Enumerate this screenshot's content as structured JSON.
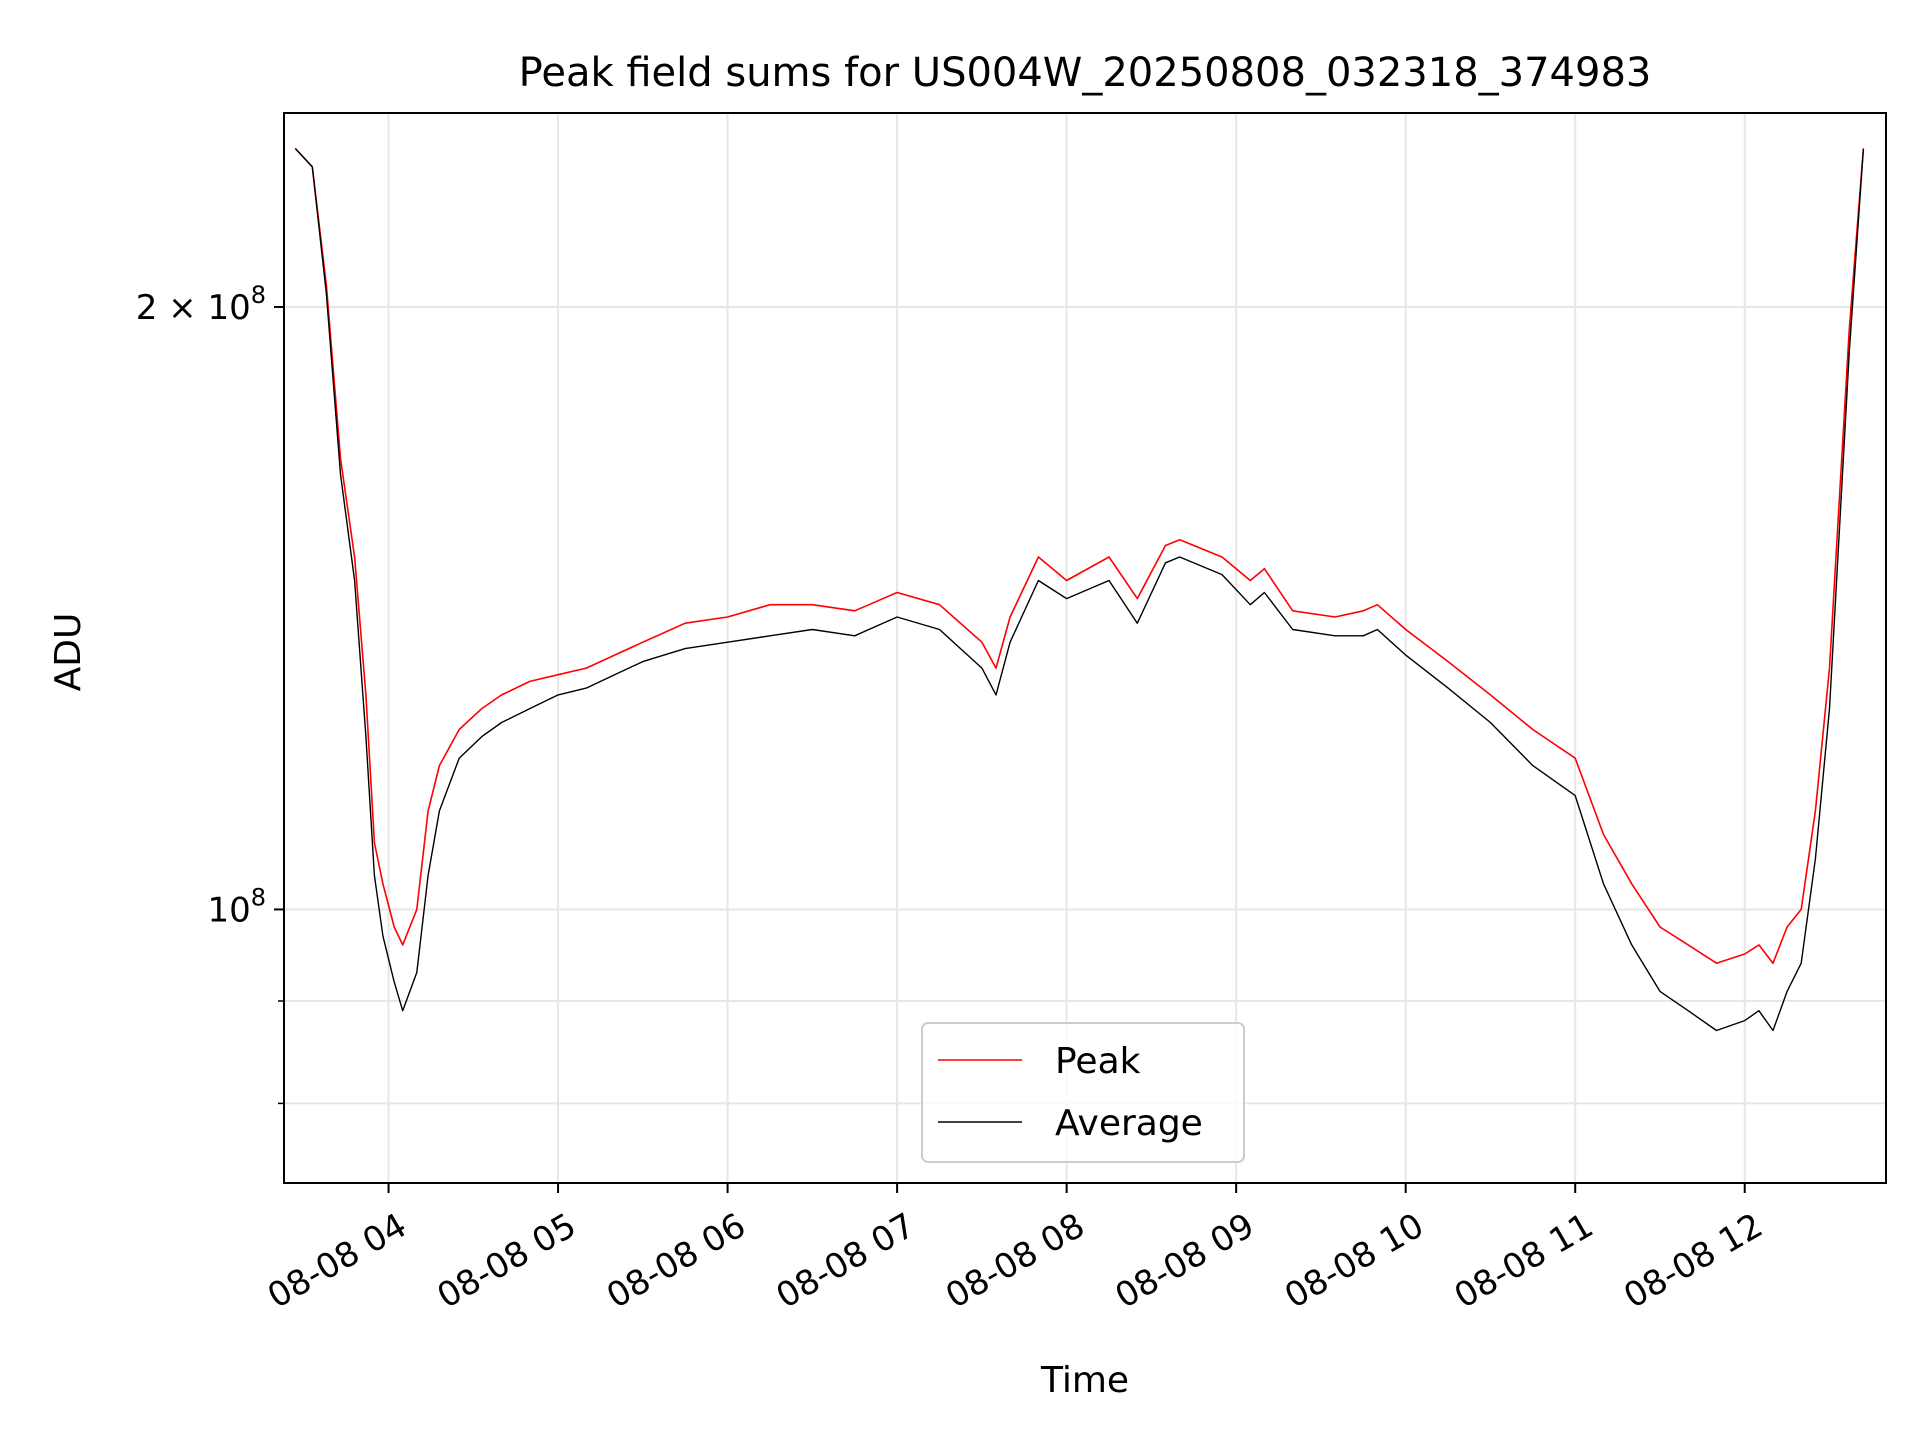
{
  "chart_data": {
    "type": "line",
    "title": "Peak field sums for US004W_20250808_032318_374983",
    "xlabel": "Time",
    "ylabel": "ADU",
    "yscale": "log",
    "xlim": [
      "2025-08-08 03:23",
      "2025-08-08 12:50"
    ],
    "ylim": [
      73000000,
      250000000
    ],
    "grid": true,
    "legend": {
      "placement": "lower center",
      "entries": [
        "Peak",
        "Average"
      ]
    },
    "x_ticks": [
      {
        "value": "2025-08-08 04:00",
        "label": "08-08 04"
      },
      {
        "value": "2025-08-08 05:00",
        "label": "08-08 05"
      },
      {
        "value": "2025-08-08 06:00",
        "label": "08-08 06"
      },
      {
        "value": "2025-08-08 07:00",
        "label": "08-08 07"
      },
      {
        "value": "2025-08-08 08:00",
        "label": "08-08 08"
      },
      {
        "value": "2025-08-08 09:00",
        "label": "08-08 09"
      },
      {
        "value": "2025-08-08 10:00",
        "label": "08-08 10"
      },
      {
        "value": "2025-08-08 11:00",
        "label": "08-08 11"
      },
      {
        "value": "2025-08-08 12:00",
        "label": "08-08 12"
      }
    ],
    "y_ticks_major": [
      {
        "value": 100000000,
        "label": "10",
        "exp": "8",
        "mantissa": ""
      },
      {
        "value": 200000000,
        "label": "10",
        "exp": "8",
        "mantissa": "2 × "
      }
    ],
    "y_ticks_minor": [
      80000000,
      90000000
    ],
    "series": [
      {
        "name": "Peak",
        "color": "#ff0000",
        "x": [
          "03:27",
          "03:33",
          "03:38",
          "03:43",
          "03:48",
          "03:52",
          "03:55",
          "03:58",
          "04:02",
          "04:05",
          "04:10",
          "04:14",
          "04:18",
          "04:25",
          "04:33",
          "04:40",
          "04:50",
          "05:00",
          "05:10",
          "05:20",
          "05:30",
          "05:45",
          "06:00",
          "06:15",
          "06:30",
          "06:45",
          "07:00",
          "07:15",
          "07:30",
          "07:35",
          "07:40",
          "07:50",
          "08:00",
          "08:15",
          "08:25",
          "08:35",
          "08:40",
          "08:55",
          "09:05",
          "09:10",
          "09:20",
          "09:35",
          "09:45",
          "09:50",
          "10:00",
          "10:15",
          "10:30",
          "10:45",
          "11:00",
          "11:10",
          "11:20",
          "11:30",
          "11:40",
          "11:50",
          "12:00",
          "12:05",
          "12:10",
          "12:15",
          "12:20",
          "12:25",
          "12:30",
          "12:37",
          "12:42"
        ],
        "y": [
          240000000,
          235000000,
          205000000,
          168000000,
          150000000,
          128000000,
          108000000,
          103000000,
          98000000,
          96000000,
          100000000,
          112000000,
          118000000,
          123000000,
          126000000,
          128000000,
          130000000,
          131000000,
          132000000,
          134000000,
          136000000,
          139000000,
          140000000,
          142000000,
          142000000,
          141000000,
          144000000,
          142000000,
          136000000,
          132000000,
          140000000,
          150000000,
          146000000,
          150000000,
          143000000,
          152000000,
          153000000,
          150000000,
          146000000,
          148000000,
          141000000,
          140000000,
          141000000,
          142000000,
          138000000,
          133000000,
          128000000,
          123000000,
          119000000,
          109000000,
          103000000,
          98000000,
          96000000,
          94000000,
          95000000,
          96000000,
          94000000,
          98000000,
          100000000,
          112000000,
          132000000,
          195000000,
          240000000
        ]
      },
      {
        "name": "Average",
        "color": "#000000",
        "x": [
          "03:27",
          "03:33",
          "03:38",
          "03:43",
          "03:48",
          "03:52",
          "03:55",
          "03:58",
          "04:02",
          "04:05",
          "04:10",
          "04:14",
          "04:18",
          "04:25",
          "04:33",
          "04:40",
          "04:50",
          "05:00",
          "05:10",
          "05:20",
          "05:30",
          "05:45",
          "06:00",
          "06:15",
          "06:30",
          "06:45",
          "07:00",
          "07:15",
          "07:30",
          "07:35",
          "07:40",
          "07:50",
          "08:00",
          "08:15",
          "08:25",
          "08:35",
          "08:40",
          "08:55",
          "09:05",
          "09:10",
          "09:20",
          "09:35",
          "09:45",
          "09:50",
          "10:00",
          "10:15",
          "10:30",
          "10:45",
          "11:00",
          "11:10",
          "11:20",
          "11:30",
          "11:40",
          "11:50",
          "12:00",
          "12:05",
          "12:10",
          "12:15",
          "12:20",
          "12:25",
          "12:30",
          "12:37",
          "12:42"
        ],
        "y": [
          240000000,
          235000000,
          203000000,
          165000000,
          146000000,
          122000000,
          104000000,
          97000000,
          92000000,
          89000000,
          93000000,
          104000000,
          112000000,
          119000000,
          122000000,
          124000000,
          126000000,
          128000000,
          129000000,
          131000000,
          133000000,
          135000000,
          136000000,
          137000000,
          138000000,
          137000000,
          140000000,
          138000000,
          132000000,
          128000000,
          136000000,
          146000000,
          143000000,
          146000000,
          139000000,
          149000000,
          150000000,
          147000000,
          142000000,
          144000000,
          138000000,
          137000000,
          137000000,
          138000000,
          134000000,
          129000000,
          124000000,
          118000000,
          114000000,
          103000000,
          96000000,
          91000000,
          89000000,
          87000000,
          88000000,
          89000000,
          87000000,
          91000000,
          94000000,
          106000000,
          126000000,
          190000000,
          240000000
        ]
      }
    ]
  }
}
